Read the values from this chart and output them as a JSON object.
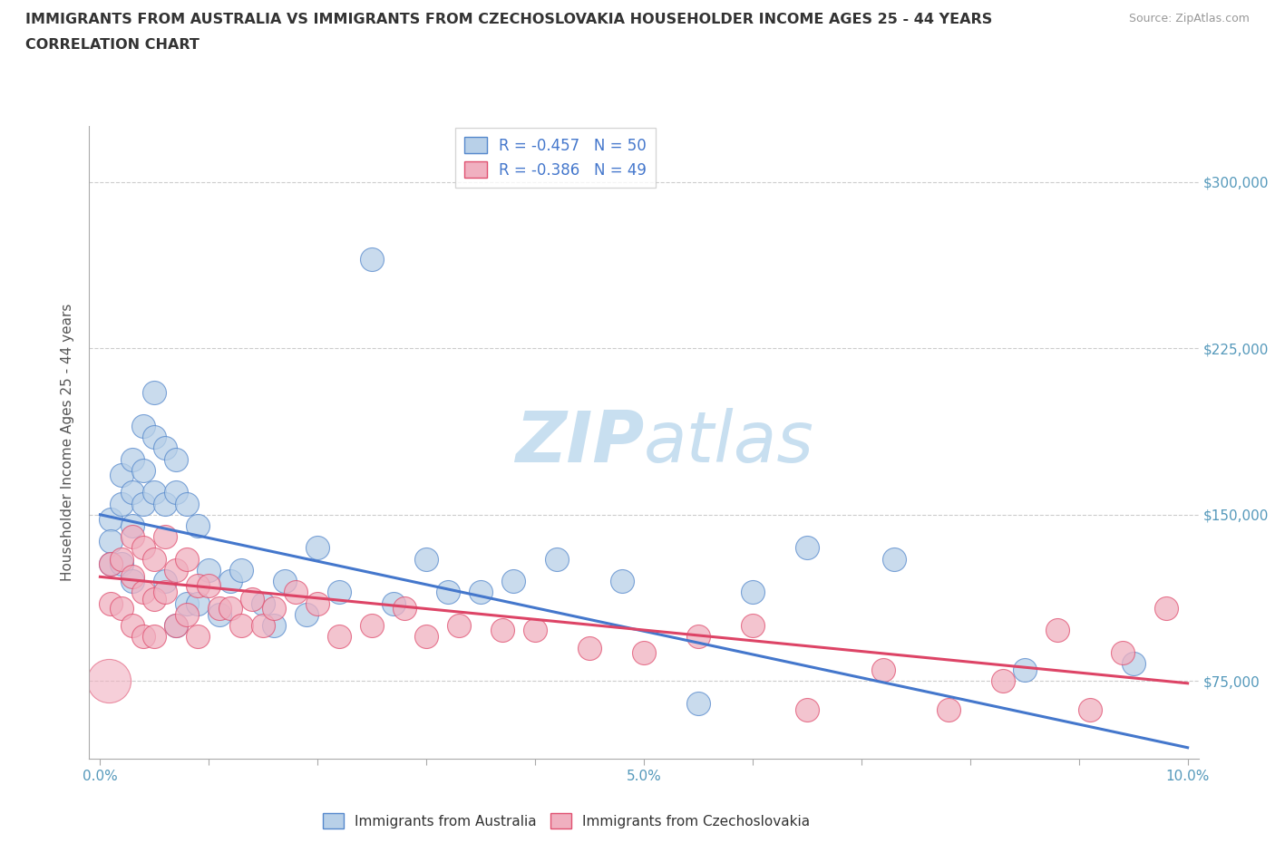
{
  "title_line1": "IMMIGRANTS FROM AUSTRALIA VS IMMIGRANTS FROM CZECHOSLOVAKIA HOUSEHOLDER INCOME AGES 25 - 44 YEARS",
  "title_line2": "CORRELATION CHART",
  "source_text": "Source: ZipAtlas.com",
  "ylabel": "Householder Income Ages 25 - 44 years",
  "xlim": [
    -0.001,
    0.101
  ],
  "ylim": [
    40000,
    325000
  ],
  "yticks": [
    75000,
    150000,
    225000,
    300000
  ],
  "ytick_labels": [
    "$75,000",
    "$150,000",
    "$225,000",
    "$300,000"
  ],
  "xticks": [
    0.0,
    0.01,
    0.02,
    0.03,
    0.04,
    0.05,
    0.06,
    0.07,
    0.08,
    0.09,
    0.1
  ],
  "xtick_labels": [
    "0.0%",
    "",
    "",
    "",
    "",
    "5.0%",
    "",
    "",
    "",
    "",
    "10.0%"
  ],
  "legend_label1": "R = -0.457   N = 50",
  "legend_label2": "R = -0.386   N = 49",
  "color_aus_fill": "#b8d0e8",
  "color_aus_edge": "#5588cc",
  "color_czk_fill": "#f0b0c0",
  "color_czk_edge": "#e05070",
  "color_aus_line": "#4477cc",
  "color_czk_line": "#dd4466",
  "watermark_color": "#c8dff0",
  "aus_intercept": 150000,
  "aus_slope": -1050000,
  "czk_intercept": 122000,
  "czk_slope": -480000,
  "australia_x": [
    0.001,
    0.001,
    0.001,
    0.002,
    0.002,
    0.002,
    0.003,
    0.003,
    0.003,
    0.003,
    0.004,
    0.004,
    0.004,
    0.005,
    0.005,
    0.005,
    0.006,
    0.006,
    0.006,
    0.007,
    0.007,
    0.007,
    0.008,
    0.008,
    0.009,
    0.009,
    0.01,
    0.011,
    0.012,
    0.013,
    0.015,
    0.016,
    0.017,
    0.019,
    0.02,
    0.022,
    0.025,
    0.027,
    0.03,
    0.032,
    0.035,
    0.038,
    0.042,
    0.048,
    0.055,
    0.06,
    0.065,
    0.073,
    0.085,
    0.095
  ],
  "australia_y": [
    148000,
    138000,
    128000,
    168000,
    155000,
    128000,
    175000,
    160000,
    145000,
    120000,
    190000,
    170000,
    155000,
    205000,
    185000,
    160000,
    180000,
    155000,
    120000,
    175000,
    160000,
    100000,
    155000,
    110000,
    145000,
    110000,
    125000,
    105000,
    120000,
    125000,
    110000,
    100000,
    120000,
    105000,
    135000,
    115000,
    265000,
    110000,
    130000,
    115000,
    115000,
    120000,
    130000,
    120000,
    65000,
    115000,
    135000,
    130000,
    80000,
    83000
  ],
  "czech_x": [
    0.001,
    0.001,
    0.002,
    0.002,
    0.003,
    0.003,
    0.003,
    0.004,
    0.004,
    0.004,
    0.005,
    0.005,
    0.005,
    0.006,
    0.006,
    0.007,
    0.007,
    0.008,
    0.008,
    0.009,
    0.009,
    0.01,
    0.011,
    0.012,
    0.013,
    0.014,
    0.015,
    0.016,
    0.018,
    0.02,
    0.022,
    0.025,
    0.028,
    0.03,
    0.033,
    0.037,
    0.04,
    0.045,
    0.05,
    0.055,
    0.06,
    0.065,
    0.072,
    0.078,
    0.083,
    0.088,
    0.091,
    0.094,
    0.098
  ],
  "czech_y": [
    128000,
    110000,
    130000,
    108000,
    140000,
    122000,
    100000,
    135000,
    115000,
    95000,
    130000,
    112000,
    95000,
    140000,
    115000,
    125000,
    100000,
    130000,
    105000,
    118000,
    95000,
    118000,
    108000,
    108000,
    100000,
    112000,
    100000,
    108000,
    115000,
    110000,
    95000,
    100000,
    108000,
    95000,
    100000,
    98000,
    98000,
    90000,
    88000,
    95000,
    100000,
    62000,
    80000,
    62000,
    75000,
    98000,
    62000,
    88000,
    108000
  ]
}
